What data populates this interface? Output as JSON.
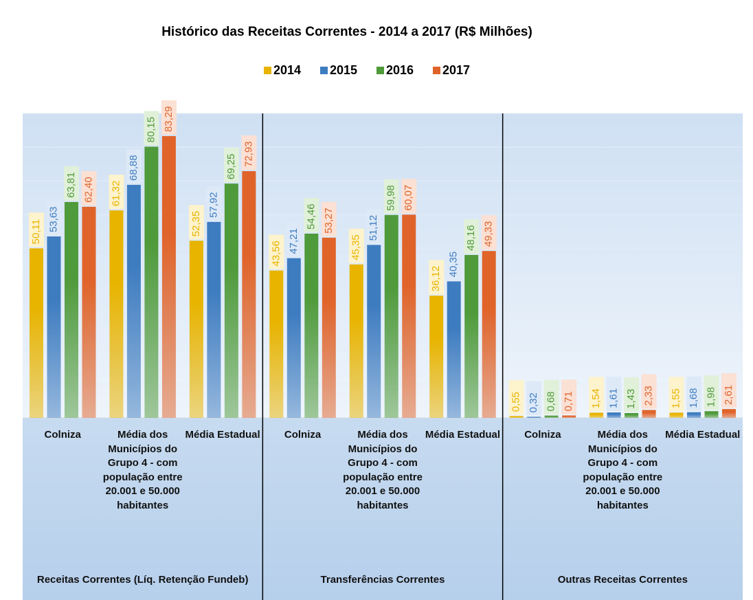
{
  "chart_data": {
    "type": "bar",
    "title": "Histórico das Receitas Correntes - 2014 a 2017 (R$ Milhões)",
    "groups": [
      {
        "name": "Receitas Correntes (Líq. Retenção Fundeb)",
        "categories": [
          0,
          1,
          2
        ]
      },
      {
        "name": "Transferências Correntes",
        "categories": [
          3,
          4,
          5
        ]
      },
      {
        "name": "Outras Receitas Correntes",
        "categories": [
          6,
          7,
          8
        ]
      }
    ],
    "categories": [
      "Colniza",
      "Média dos Municípios do Grupo 4 - com população entre 20.001 e 50.000 habitantes",
      "Média Estadual",
      "Colniza",
      "Média dos Municípios do Grupo 4 - com população entre 20.001 e 50.000 habitantes",
      "Média Estadual",
      "Colniza",
      "Média dos Municípios do Grupo 4 - com população entre 20.001 e 50.000 habitantes",
      "Média Estadual"
    ],
    "series": [
      {
        "name": "2014",
        "color": "#e8b400",
        "values": [
          50.11,
          61.32,
          52.35,
          43.56,
          45.35,
          36.12,
          0.55,
          1.54,
          1.55
        ],
        "value_labels": [
          "50,11",
          "61,32",
          "52,35",
          "43,56",
          "45,35",
          "36,12",
          "0,55",
          "1,54",
          "1,55"
        ]
      },
      {
        "name": "2015",
        "color": "#3e7cc0",
        "values": [
          53.63,
          68.88,
          57.92,
          47.21,
          51.12,
          40.35,
          0.32,
          1.61,
          1.68
        ],
        "value_labels": [
          "53,63",
          "68,88",
          "57,92",
          "47,21",
          "51,12",
          "40,35",
          "0,32",
          "1,61",
          "1,68"
        ]
      },
      {
        "name": "2016",
        "color": "#4f9a3a",
        "values": [
          63.81,
          80.15,
          69.25,
          54.46,
          59.98,
          48.16,
          0.68,
          1.43,
          1.98
        ],
        "value_labels": [
          "63,81",
          "80,15",
          "69,25",
          "54,46",
          "59,98",
          "48,16",
          "0,68",
          "1,43",
          "1,98"
        ]
      },
      {
        "name": "2017",
        "color": "#e0642a",
        "values": [
          62.4,
          83.29,
          72.93,
          53.27,
          60.07,
          49.33,
          0.71,
          2.33,
          2.61
        ],
        "value_labels": [
          "62,40",
          "83,29",
          "72,93",
          "53,27",
          "60,07",
          "49,33",
          "0,71",
          "2,33",
          "2,61"
        ]
      }
    ],
    "ylim": [
      0,
      90
    ],
    "yticks": [
      0,
      10,
      20,
      30,
      40,
      50,
      60,
      70,
      80,
      90
    ],
    "grid": true,
    "legend": "top"
  }
}
